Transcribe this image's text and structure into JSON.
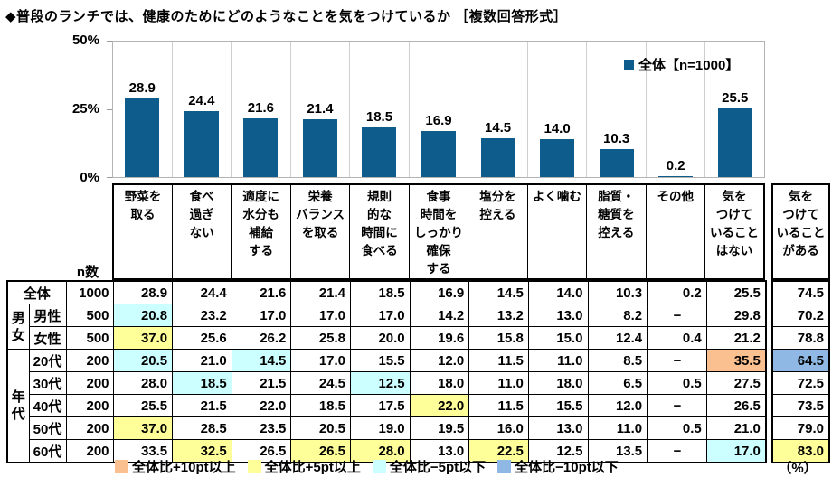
{
  "title": "◆普段のランチでは、健康のためにどのようなことを気をつけているか ［複数回答形式］",
  "chart_data": {
    "type": "bar",
    "title": "普段のランチでは、健康のためにどのようなことを気をつけているか（複数回答形式）",
    "series_name": "全体【n=1000】",
    "categories": [
      "野菜を取る",
      "食べ過ぎない",
      "適度に水分も補給する",
      "栄養バランスを取る",
      "規則的な時間に食べる",
      "食事時間をしっかり確保する",
      "塩分を控える",
      "よく噛む",
      "脂質・糖質を控える",
      "その他",
      "気をつけていることはない"
    ],
    "values": [
      28.9,
      24.4,
      21.6,
      21.4,
      18.5,
      16.9,
      14.5,
      14.0,
      10.3,
      0.2,
      25.5
    ],
    "ylabel": "%",
    "ylim": [
      0,
      50
    ],
    "yticks": [
      "50%",
      "25%",
      "0%"
    ],
    "grid": "vertical-separators-only",
    "legend_position": "top-right",
    "bar_color": "#0D5C8C"
  },
  "table": {
    "n_header": "n数",
    "unit_label": "（%）",
    "col_headers": [
      "野菜を\n取る",
      "食べ\n過ぎ\nない",
      "適度に\n水分も\n補給\nする",
      "栄養\nバランス\nを取る",
      "規則\n的な\n時間に\n食べる",
      "食事\n時間を\nしっかり\n確保\nする",
      "塩分を\n控える",
      "よく噛む",
      "脂質・\n糖質を\n控える",
      "その他",
      "気を\nつけて\nいること\nはない",
      "気を\nつけて\nいること\nがある"
    ],
    "groups": [
      {
        "label": "男\n女",
        "start": 1,
        "span": 2
      },
      {
        "label": "年\n代",
        "start": 3,
        "span": 5
      }
    ],
    "rows": [
      {
        "label": "全体",
        "n": "1000",
        "values": [
          "28.9",
          "24.4",
          "21.6",
          "21.4",
          "18.5",
          "16.9",
          "14.5",
          "14.0",
          "10.3",
          "0.2",
          "25.5",
          "74.5"
        ],
        "highlights": [
          null,
          null,
          null,
          null,
          null,
          null,
          null,
          null,
          null,
          null,
          null,
          null
        ]
      },
      {
        "label": "男性",
        "n": "500",
        "values": [
          "20.8",
          "23.2",
          "17.0",
          "17.0",
          "17.0",
          "14.2",
          "13.2",
          "13.0",
          "8.2",
          "−",
          "29.8",
          "70.2"
        ],
        "highlights": [
          "m5",
          null,
          null,
          null,
          null,
          null,
          null,
          null,
          null,
          null,
          null,
          null
        ]
      },
      {
        "label": "女性",
        "n": "500",
        "values": [
          "37.0",
          "25.6",
          "26.2",
          "25.8",
          "20.0",
          "19.6",
          "15.8",
          "15.0",
          "12.4",
          "0.4",
          "21.2",
          "78.8"
        ],
        "highlights": [
          "p5",
          null,
          null,
          null,
          null,
          null,
          null,
          null,
          null,
          null,
          null,
          null
        ]
      },
      {
        "label": "20代",
        "n": "200",
        "values": [
          "20.5",
          "21.0",
          "14.5",
          "17.0",
          "15.5",
          "12.0",
          "11.5",
          "11.0",
          "8.5",
          "−",
          "35.5",
          "64.5"
        ],
        "highlights": [
          "m5",
          null,
          "m5",
          null,
          null,
          null,
          null,
          null,
          null,
          null,
          "p10",
          "m10"
        ]
      },
      {
        "label": "30代",
        "n": "200",
        "values": [
          "28.0",
          "18.5",
          "21.5",
          "24.5",
          "12.5",
          "18.0",
          "11.0",
          "18.0",
          "6.5",
          "0.5",
          "27.5",
          "72.5"
        ],
        "highlights": [
          null,
          "m5",
          null,
          null,
          "m5",
          null,
          null,
          null,
          null,
          null,
          null,
          null
        ]
      },
      {
        "label": "40代",
        "n": "200",
        "values": [
          "25.5",
          "21.5",
          "22.0",
          "18.5",
          "17.5",
          "22.0",
          "11.5",
          "15.5",
          "12.0",
          "−",
          "26.5",
          "73.5"
        ],
        "highlights": [
          null,
          null,
          null,
          null,
          null,
          "p5",
          null,
          null,
          null,
          null,
          null,
          null
        ]
      },
      {
        "label": "50代",
        "n": "200",
        "values": [
          "37.0",
          "28.5",
          "23.5",
          "20.5",
          "19.0",
          "19.5",
          "16.0",
          "13.0",
          "11.0",
          "0.5",
          "21.0",
          "79.0"
        ],
        "highlights": [
          "p5",
          null,
          null,
          null,
          null,
          null,
          null,
          null,
          null,
          null,
          null,
          null
        ]
      },
      {
        "label": "60代",
        "n": "200",
        "values": [
          "33.5",
          "32.5",
          "26.5",
          "26.5",
          "28.0",
          "13.0",
          "22.5",
          "12.5",
          "13.5",
          "−",
          "17.0",
          "83.0"
        ],
        "highlights": [
          null,
          "p5",
          null,
          "p5",
          "p5",
          null,
          "p5",
          null,
          null,
          null,
          "m5",
          "p5"
        ]
      }
    ]
  },
  "key_legend": {
    "items": [
      {
        "label": "全体比+10pt以上",
        "color": "#FAC090",
        "class": "hl-p10"
      },
      {
        "label": "全体比+5pt以上",
        "color": "#FFFF99",
        "class": "hl-p5"
      },
      {
        "label": "全体比−5pt以下",
        "color": "#CCFFFF",
        "class": "hl-m5"
      },
      {
        "label": "全体比−10pt以下",
        "color": "#8FB9E4",
        "class": "hl-m10"
      }
    ]
  }
}
